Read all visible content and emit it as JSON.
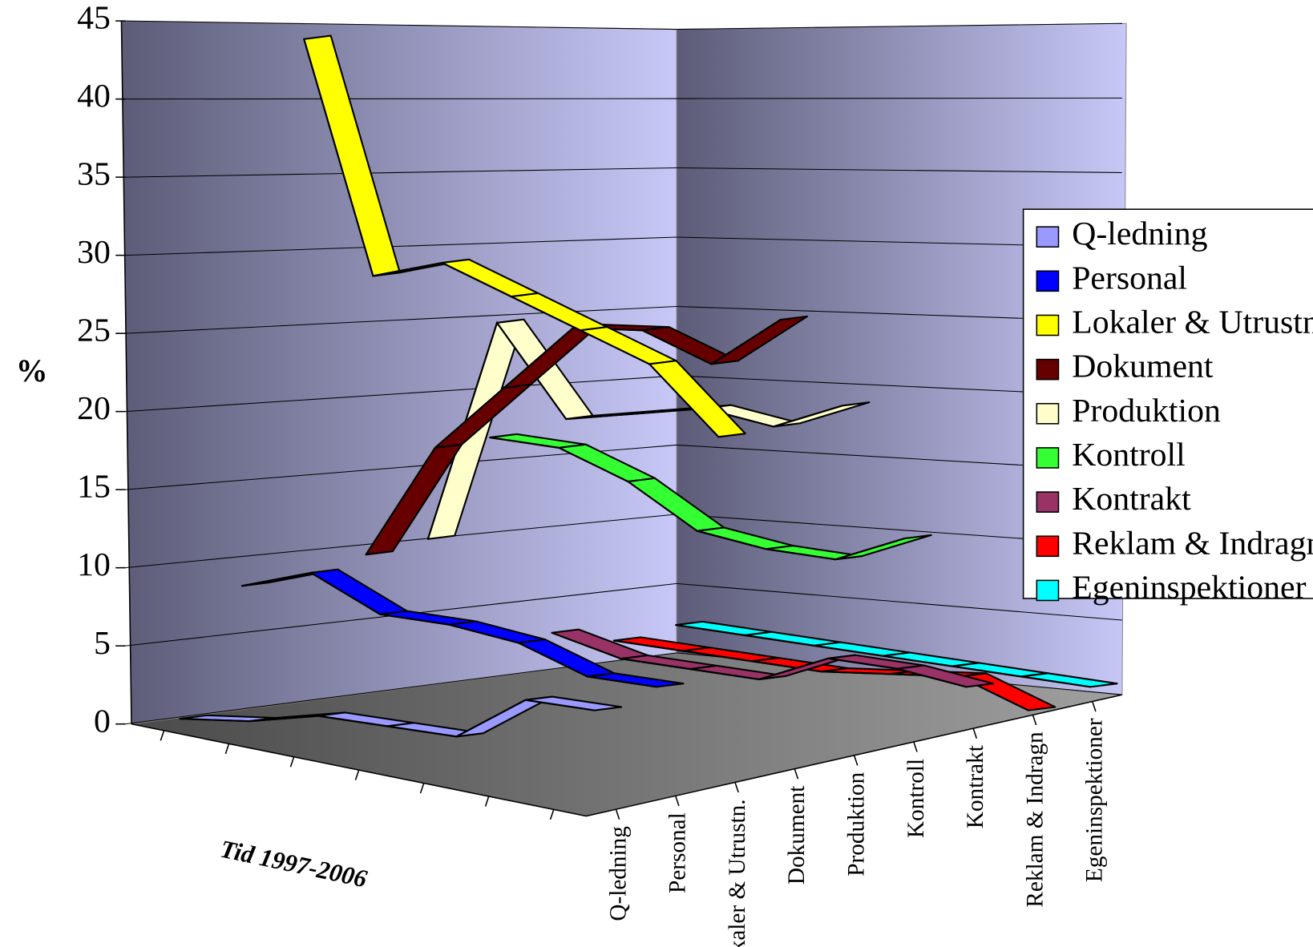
{
  "chart_data": {
    "type": "ribbon",
    "y_label": "%",
    "x_label": "Tid 1997-2006",
    "categories": [
      null,
      null,
      null,
      null,
      null,
      null,
      null
    ],
    "ylim": [
      0,
      45
    ],
    "yticks": [
      0,
      5,
      10,
      15,
      20,
      25,
      30,
      35,
      40,
      45
    ],
    "grid": true,
    "legend": "right",
    "series": [
      {
        "name": "Q-ledning",
        "color": "#9999ff",
        "values": [
          0.5,
          0.5,
          1,
          0.5,
          0,
          2.5,
          2
        ]
      },
      {
        "name": "Personal",
        "color": "#0000ff",
        "values": [
          9,
          10,
          7.5,
          7,
          6,
          4,
          3.5
        ]
      },
      {
        "name": "Lokaler & Utrustn.",
        "color": "#ffff00",
        "values": [
          44,
          29,
          30,
          28,
          26,
          24,
          19.5
        ]
      },
      {
        "name": "Dokument",
        "color": "#660000",
        "values": [
          11,
          18,
          22,
          26,
          26,
          24,
          27
        ]
      },
      {
        "name": "Produktion",
        "color": "#ffffcc",
        "values": [
          12,
          26,
          20,
          20.5,
          21,
          20,
          21.5
        ]
      },
      {
        "name": "Kontroll",
        "color": "#33ff33",
        "values": [
          18.5,
          18,
          16,
          13,
          12,
          11.5,
          13
        ]
      },
      {
        "name": "Kontrakt",
        "color": "#993366",
        "values": [
          6,
          4.5,
          4,
          3.5,
          5,
          4.5,
          3.5
        ]
      },
      {
        "name": "Reklam & Indragn",
        "color": "#ff0000",
        "values": [
          5.5,
          5,
          4.5,
          4,
          4,
          4,
          2
        ]
      },
      {
        "name": "Egeninspektioner",
        "color": "#00ffff",
        "values": [
          6.5,
          6,
          5.5,
          5,
          4.5,
          4,
          3.5
        ]
      }
    ]
  }
}
